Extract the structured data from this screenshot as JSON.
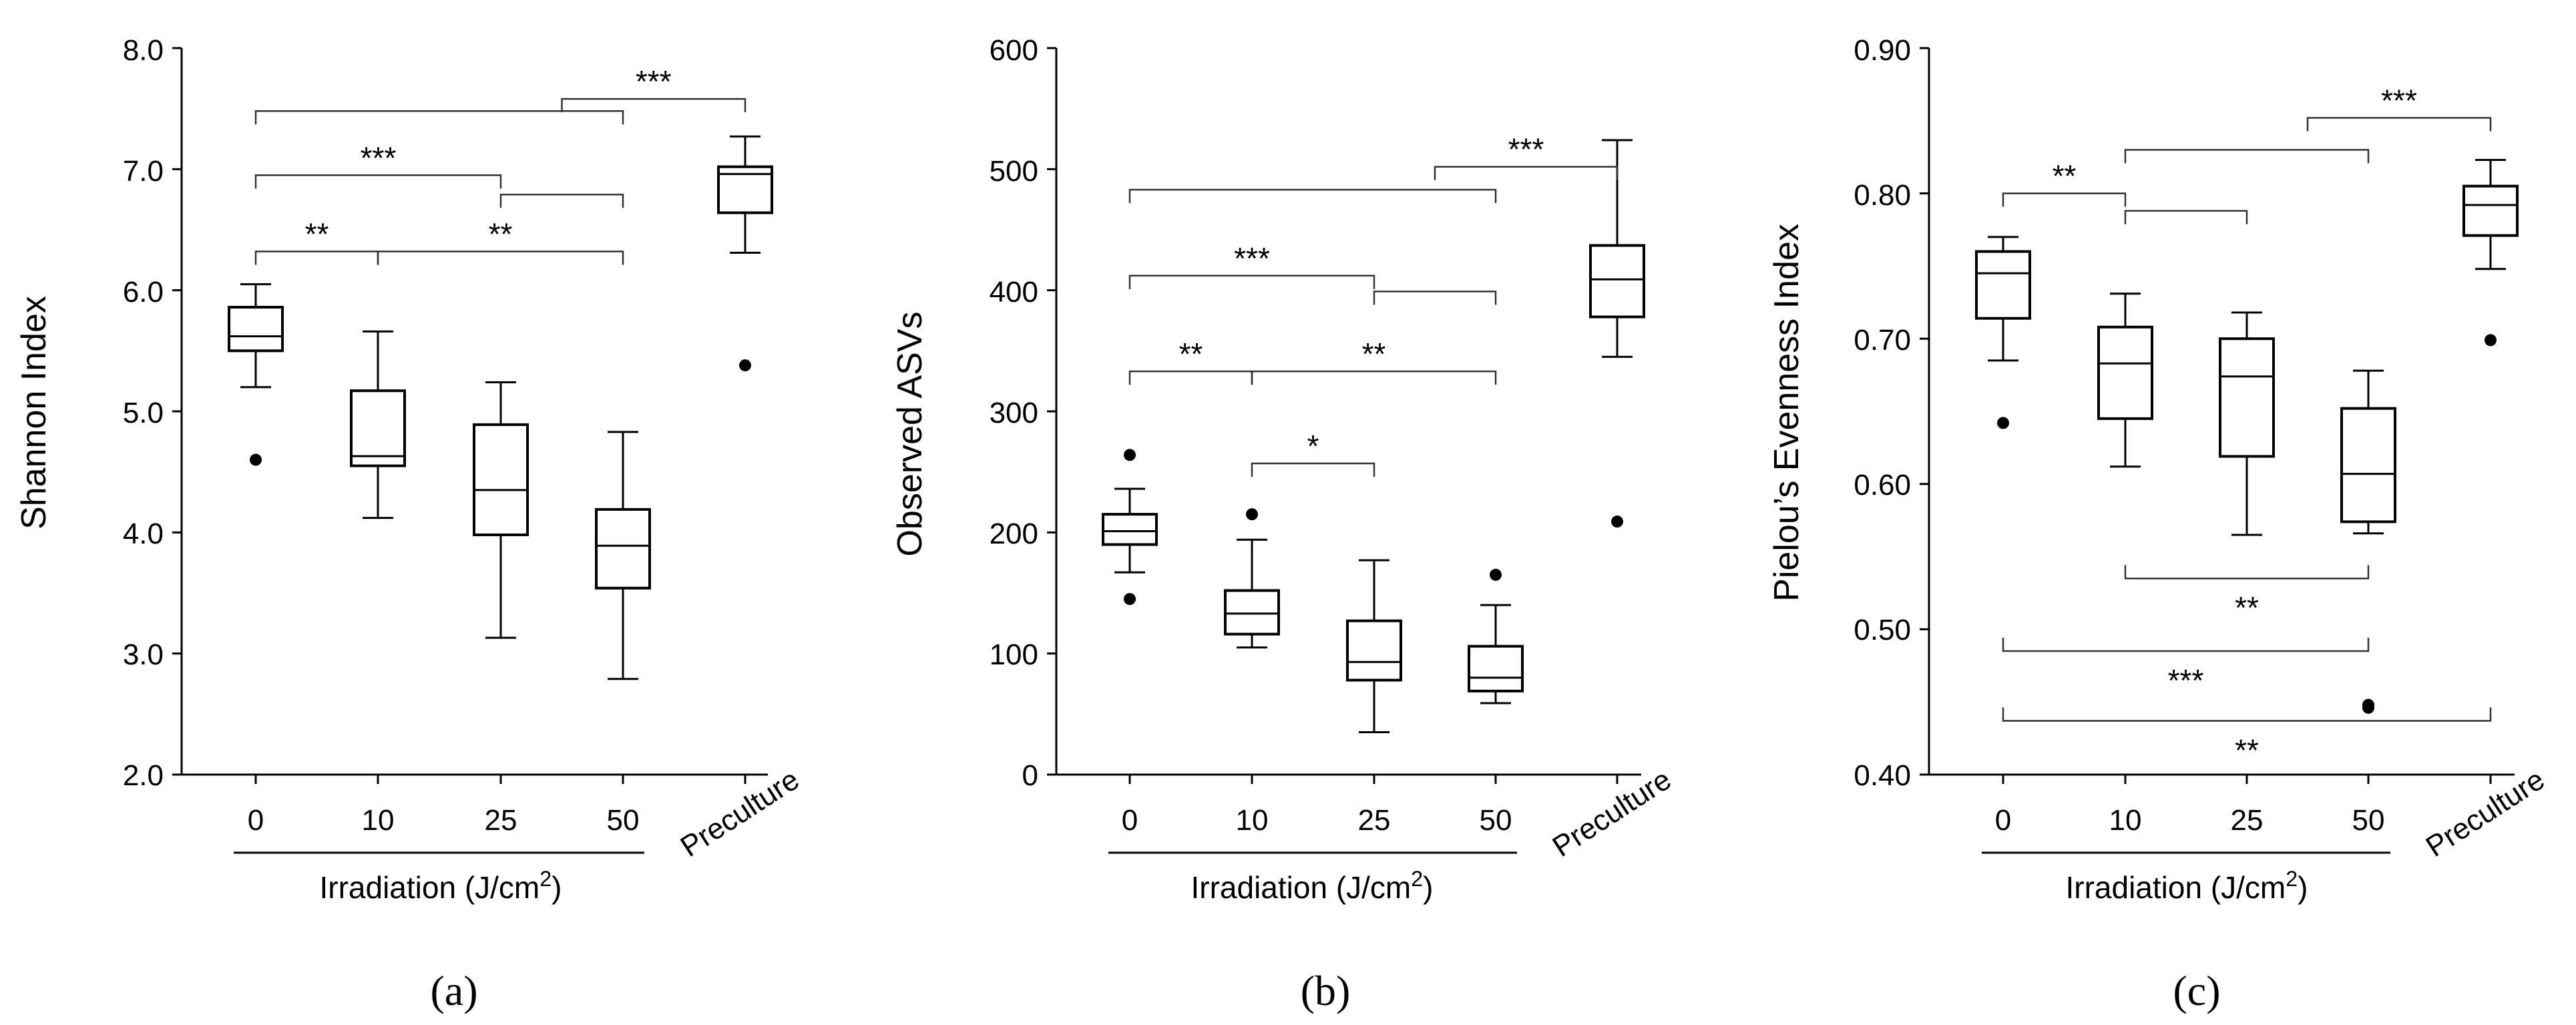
{
  "figure": {
    "panels": [
      {
        "caption": "(a)",
        "ylabel": "Shannon Index",
        "xlabel_html": "Irradiation (J/cm<tspan baseline-shift=\"super\" font-size=\"70%\">2</tspan>)",
        "xlabel": "Irradiation (J/cm2)",
        "ticks": [
          "8.0",
          "7.0",
          "6.0",
          "5.0",
          "4.0",
          "3.0",
          "2.0"
        ]
      },
      {
        "caption": "(b)",
        "ylabel": "Observed ASVs",
        "xlabel": "Irradiation (J/cm2)",
        "ticks": [
          "600",
          "500",
          "400",
          "300",
          "200",
          "100",
          "0"
        ]
      },
      {
        "caption": "(c)",
        "ylabel": "Pielou’s Evenness Index",
        "xlabel": "Irradiation (J/cm2)",
        "ticks": [
          "0.90",
          "0.80",
          "0.70",
          "0.60",
          "0.50",
          "0.40"
        ]
      }
    ]
  },
  "chart_data": [
    {
      "type": "box",
      "title": "(a)",
      "ylabel": "Shannon Index",
      "xlabel": "Irradiation (J/cm2)",
      "ylim": [
        2.0,
        8.0
      ],
      "yticks": [
        2.0,
        3.0,
        4.0,
        5.0,
        6.0,
        7.0,
        8.0
      ],
      "tick_decimals": 1,
      "categories": [
        "0",
        "10",
        "25",
        "50",
        "Preculture"
      ],
      "boxes": [
        {
          "min": 5.2,
          "q1": 5.5,
          "median": 5.62,
          "q3": 5.86,
          "max": 6.05,
          "outliers": [
            4.6
          ]
        },
        {
          "min": 4.12,
          "q1": 4.55,
          "median": 4.63,
          "q3": 5.17,
          "max": 5.66,
          "outliers": []
        },
        {
          "min": 3.13,
          "q1": 3.98,
          "median": 4.35,
          "q3": 4.89,
          "max": 5.24,
          "outliers": []
        },
        {
          "min": 2.79,
          "q1": 3.54,
          "median": 3.89,
          "q3": 4.19,
          "max": 4.83,
          "outliers": []
        },
        {
          "min": 6.31,
          "q1": 6.64,
          "median": 6.96,
          "q3": 7.02,
          "max": 7.27,
          "outliers": [
            5.38
          ]
        }
      ],
      "significance": [
        {
          "left": 0,
          "right": 1,
          "y": 6.32,
          "label": "**"
        },
        {
          "left": 1,
          "right": 3,
          "y": 6.32,
          "label": "**"
        },
        {
          "left": 0,
          "right": 2,
          "y": 6.95,
          "label": "***"
        },
        {
          "left": 2,
          "right": 3,
          "y": 6.79,
          "label": ""
        },
        {
          "left": 0,
          "right": 3,
          "y": 7.48,
          "label": ""
        },
        {
          "left": 2.5,
          "right": 4,
          "y": 7.58,
          "label": "***"
        }
      ]
    },
    {
      "type": "box",
      "title": "(b)",
      "ylabel": "Observed ASVs",
      "xlabel": "Irradiation (J/cm2)",
      "ylim": [
        0,
        600
      ],
      "yticks": [
        0,
        100,
        200,
        300,
        400,
        500,
        600
      ],
      "tick_decimals": 0,
      "categories": [
        "0",
        "10",
        "25",
        "50",
        "Preculture"
      ],
      "boxes": [
        {
          "min": 167,
          "q1": 190,
          "median": 201,
          "q3": 215,
          "max": 236,
          "outliers": [
            145,
            264
          ]
        },
        {
          "min": 105,
          "q1": 116,
          "median": 133,
          "q3": 152,
          "max": 194,
          "outliers": [
            215
          ]
        },
        {
          "min": 35,
          "q1": 78,
          "median": 93,
          "q3": 127,
          "max": 177,
          "outliers": []
        },
        {
          "min": 59,
          "q1": 69,
          "median": 80,
          "q3": 106,
          "max": 140,
          "outliers": [
            165
          ]
        },
        {
          "min": 345,
          "q1": 378,
          "median": 409,
          "q3": 437,
          "max": 524,
          "outliers": [
            209
          ]
        }
      ],
      "significance": [
        {
          "left": 1,
          "right": 2,
          "y": 257,
          "label": "*"
        },
        {
          "left": 0,
          "right": 1,
          "y": 333,
          "label": "**"
        },
        {
          "left": 1,
          "right": 3,
          "y": 333,
          "label": "**"
        },
        {
          "left": 0,
          "right": 2,
          "y": 412,
          "label": "***"
        },
        {
          "left": 2,
          "right": 3,
          "y": 399,
          "label": ""
        },
        {
          "left": 0,
          "right": 3,
          "y": 483,
          "label": ""
        },
        {
          "left": 2.5,
          "right": 4,
          "y": 502,
          "label": "***"
        }
      ]
    },
    {
      "type": "box",
      "title": "(c)",
      "ylabel": "Pielou’s Evenness Index",
      "xlabel": "Irradiation (J/cm2)",
      "ylim": [
        0.4,
        0.9
      ],
      "yticks": [
        0.4,
        0.5,
        0.6,
        0.7,
        0.8,
        0.9
      ],
      "tick_decimals": 2,
      "categories": [
        "0",
        "10",
        "25",
        "50",
        "Preculture"
      ],
      "boxes": [
        {
          "min": 0.685,
          "q1": 0.714,
          "median": 0.745,
          "q3": 0.76,
          "max": 0.77,
          "outliers": [
            0.642
          ]
        },
        {
          "min": 0.612,
          "q1": 0.645,
          "median": 0.683,
          "q3": 0.708,
          "max": 0.731,
          "outliers": []
        },
        {
          "min": 0.565,
          "q1": 0.619,
          "median": 0.674,
          "q3": 0.7,
          "max": 0.718,
          "outliers": []
        },
        {
          "min": 0.566,
          "q1": 0.574,
          "median": 0.607,
          "q3": 0.652,
          "max": 0.678,
          "outliers": [
            0.446,
            0.448
          ]
        },
        {
          "min": 0.748,
          "q1": 0.771,
          "median": 0.792,
          "q3": 0.805,
          "max": 0.823,
          "outliers": [
            0.699
          ]
        }
      ],
      "significance": [
        {
          "left": 0,
          "right": 1,
          "y": 0.8,
          "label": "**"
        },
        {
          "left": 1,
          "right": 2,
          "y": 0.788,
          "label": ""
        },
        {
          "left": 1,
          "right": 3,
          "y": 0.83,
          "label": ""
        },
        {
          "left": 2.5,
          "right": 4,
          "y": 0.852,
          "label": "***"
        },
        {
          "left": 1,
          "right": 3,
          "y": 0.535,
          "label": "**",
          "below": true
        },
        {
          "left": 0,
          "right": 3,
          "y": 0.485,
          "label": "***",
          "below": true
        },
        {
          "left": 0,
          "right": 4,
          "y": 0.437,
          "label": "**",
          "below": true
        }
      ]
    }
  ]
}
